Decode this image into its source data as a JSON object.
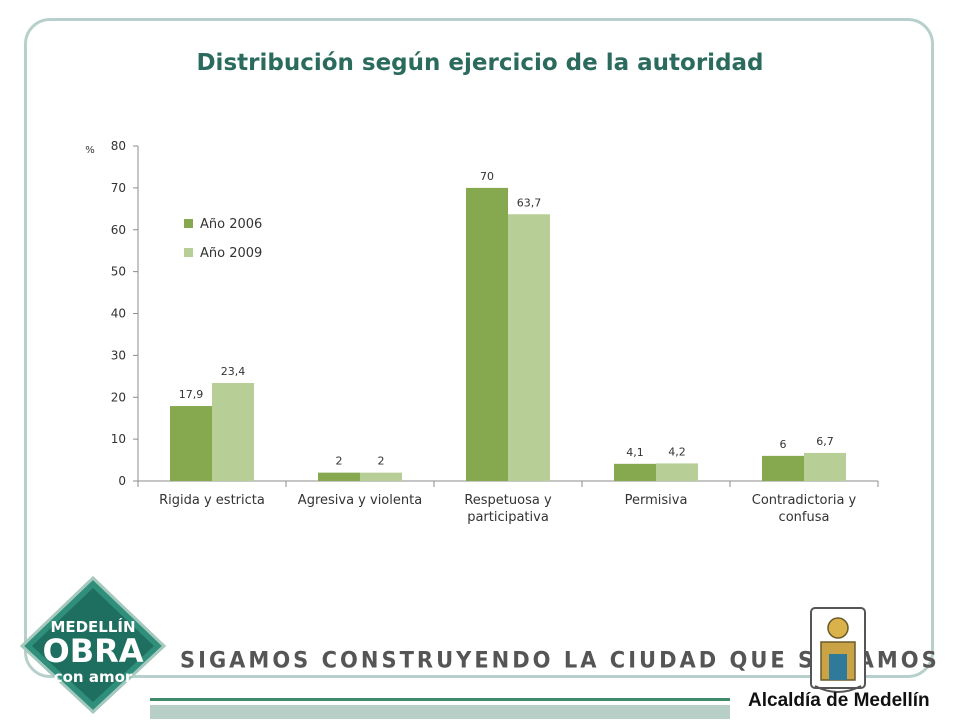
{
  "chart_data": {
    "type": "bar",
    "title": "Distribución según ejercicio de la autoridad",
    "ylabel": "%",
    "ylim": [
      0,
      80
    ],
    "yticks": [
      0,
      10,
      20,
      30,
      40,
      50,
      60,
      70,
      80
    ],
    "categories": [
      [
        "Rigida y estricta"
      ],
      [
        "Agresiva y violenta"
      ],
      [
        "Respetuosa y",
        "participativa"
      ],
      [
        "Permisiva"
      ],
      [
        "Contradictoria y",
        "confusa"
      ]
    ],
    "series": [
      {
        "name": "Año 2006",
        "color": "#86a84f",
        "values": [
          17.9,
          2,
          70,
          4.1,
          6
        ],
        "labels": [
          "17,9",
          "2",
          "70",
          "4,1",
          "6"
        ]
      },
      {
        "name": "Año 2009",
        "color": "#b7cf96",
        "values": [
          23.4,
          2,
          63.7,
          4.2,
          6.7
        ],
        "labels": [
          "23,4",
          "2",
          "63,7",
          "4,2",
          "6,7"
        ]
      }
    ],
    "legend_position": "top-left",
    "grid": false
  },
  "footer": {
    "slogan": "SIGAMOS CONSTRUYENDO LA CIUDAD QUE SOÑAMOS",
    "logo_left": {
      "line1": "MEDELLÍN",
      "line2": "OBRA",
      "line3": "con amor"
    },
    "logo_right_text": "Alcaldía de Medellín"
  }
}
